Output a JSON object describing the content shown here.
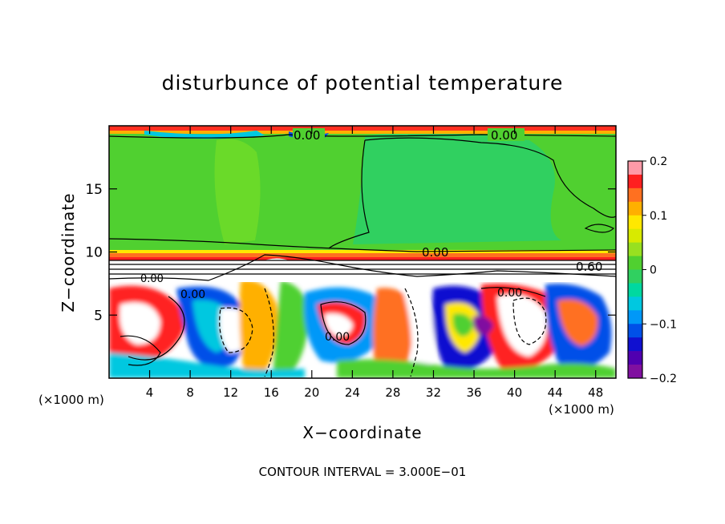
{
  "chart_data": {
    "type": "heatmap",
    "title": "disturbunce of potential temperature",
    "xlabel": "X−coordinate",
    "ylabel": "Z−coordinate",
    "x_unit": "(×1000 m)",
    "x_unit_right": "(×1000 m)",
    "footer": "CONTOUR INTERVAL = 3.000E−01",
    "xlim": [
      0,
      50
    ],
    "ylim": [
      0,
      20
    ],
    "x_ticks": [
      "4",
      "8",
      "12",
      "16",
      "20",
      "24",
      "28",
      "32",
      "36",
      "40",
      "44",
      "48"
    ],
    "y_ticks": [
      "5",
      "10",
      "15"
    ],
    "colorbar": {
      "range": [
        -0.2,
        0.2
      ],
      "tick_labels": [
        "0.2",
        "0.1",
        "0",
        "−0.1",
        "−0.2"
      ],
      "colors": [
        "#ff9aa8",
        "#ff2020",
        "#ff7020",
        "#ffb000",
        "#ffe800",
        "#d8ea00",
        "#98e020",
        "#50d030",
        "#30d060",
        "#00d8a0",
        "#00c8e0",
        "#0098f8",
        "#0050e8",
        "#1010d0",
        "#5000b0",
        "#8010a0"
      ]
    },
    "contour_labels": [
      "0.00",
      "0.00",
      "0.00",
      "0.60",
      "0.00",
      "0.00",
      "0.00",
      "0.00"
    ]
  }
}
